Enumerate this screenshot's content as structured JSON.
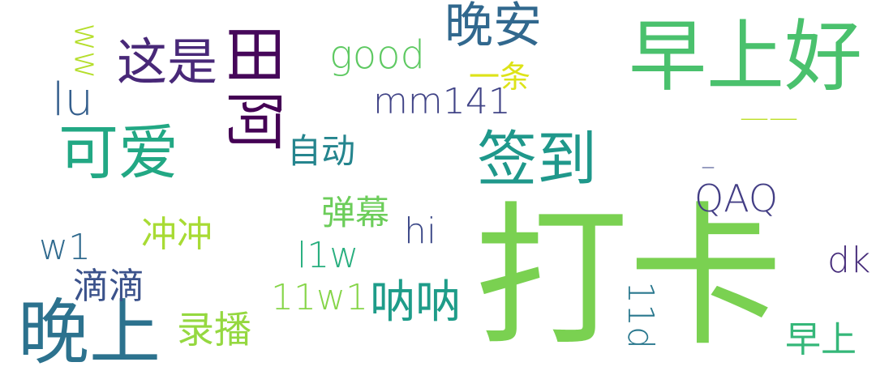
{
  "word_cloud": {
    "words": [
      {
        "text": "打卡",
        "color": "#7ad151"
      },
      {
        "text": "早上好",
        "color": "#4ac16d"
      },
      {
        "text": "晚上",
        "color": "#2c728e"
      },
      {
        "text": "签到",
        "color": "#1f988b"
      },
      {
        "text": "可爱",
        "color": "#22a884"
      },
      {
        "text": "这是",
        "color": "#482878"
      },
      {
        "text": "晚安",
        "color": "#31688e"
      },
      {
        "text": "mm141",
        "color": "#414487"
      },
      {
        "text": "good",
        "color": "#5ec962"
      },
      {
        "text": "lu",
        "color": "#355f8d"
      },
      {
        "text": "一条",
        "color": "#dde318"
      },
      {
        "text": "自动",
        "color": "#25858e"
      },
      {
        "text": "QAQ",
        "color": "#433e85"
      },
      {
        "text": "弹幕",
        "color": "#6ccd5a"
      },
      {
        "text": "冲冲",
        "color": "#a8db34"
      },
      {
        "text": "hi",
        "color": "#3e4a89"
      },
      {
        "text": "l1w",
        "color": "#29af7f"
      },
      {
        "text": "w1",
        "color": "#306a8e"
      },
      {
        "text": "滴滴",
        "color": "#3b528b"
      },
      {
        "text": "11w1",
        "color": "#86d549"
      },
      {
        "text": "呐呐",
        "color": "#1e9c89"
      },
      {
        "text": "录播",
        "color": "#95d840"
      },
      {
        "text": "早上",
        "color": "#35b779"
      },
      {
        "text": "dk",
        "color": "#472d7b"
      },
      {
        "text": "ww",
        "color": "#b5de2b"
      },
      {
        "text": "11d",
        "color": "#2a788e"
      },
      {
        "text": "——",
        "color": "#bddf26"
      },
      {
        "text": "_",
        "color": "#3f4889"
      },
      {
        "text": "阿",
        "color": "#440154"
      },
      {
        "text": "田",
        "color": "#46075a"
      }
    ]
  }
}
